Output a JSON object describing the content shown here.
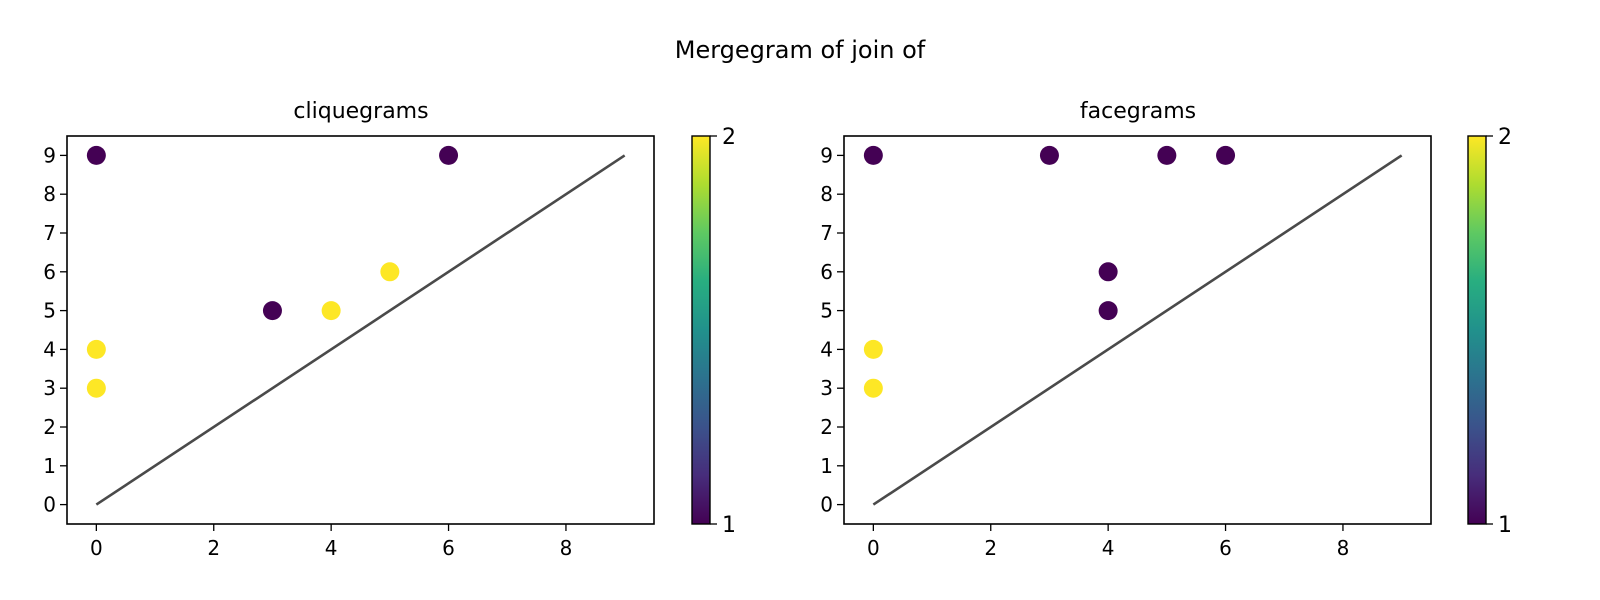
{
  "suptitle": "Mergegram of join of",
  "colors": {
    "low": "#440154",
    "high": "#fde725",
    "diagonal": "#4a4a4a"
  },
  "chart_data": [
    {
      "type": "scatter",
      "title": "cliquegrams",
      "xlabel": "",
      "ylabel": "",
      "xlim": [
        -0.5,
        9.5
      ],
      "ylim": [
        -0.5,
        9.5
      ],
      "xticks": [
        0,
        2,
        4,
        6,
        8
      ],
      "yticks": [
        0,
        1,
        2,
        3,
        4,
        5,
        6,
        7,
        8,
        9
      ],
      "diagonal": [
        [
          0,
          0
        ],
        [
          9,
          9
        ]
      ],
      "points": [
        {
          "x": 0,
          "y": 9,
          "c": 1
        },
        {
          "x": 6,
          "y": 9,
          "c": 1
        },
        {
          "x": 5,
          "y": 6,
          "c": 2
        },
        {
          "x": 3,
          "y": 5,
          "c": 1
        },
        {
          "x": 4,
          "y": 5,
          "c": 2
        },
        {
          "x": 0,
          "y": 4,
          "c": 2
        },
        {
          "x": 0,
          "y": 3,
          "c": 2
        }
      ],
      "colorbar": {
        "min": 1,
        "max": 2,
        "ticks": [
          "1",
          "2"
        ]
      },
      "grid": false
    },
    {
      "type": "scatter",
      "title": "facegrams",
      "xlabel": "",
      "ylabel": "",
      "xlim": [
        -0.5,
        9.5
      ],
      "ylim": [
        -0.5,
        9.5
      ],
      "xticks": [
        0,
        2,
        4,
        6,
        8
      ],
      "yticks": [
        0,
        1,
        2,
        3,
        4,
        5,
        6,
        7,
        8,
        9
      ],
      "diagonal": [
        [
          0,
          0
        ],
        [
          9,
          9
        ]
      ],
      "points": [
        {
          "x": 0,
          "y": 9,
          "c": 1
        },
        {
          "x": 3,
          "y": 9,
          "c": 1
        },
        {
          "x": 5,
          "y": 9,
          "c": 1
        },
        {
          "x": 6,
          "y": 9,
          "c": 1
        },
        {
          "x": 4,
          "y": 6,
          "c": 1
        },
        {
          "x": 4,
          "y": 5,
          "c": 1
        },
        {
          "x": 0,
          "y": 4,
          "c": 2
        },
        {
          "x": 0,
          "y": 3,
          "c": 2
        }
      ],
      "colorbar": {
        "min": 1,
        "max": 2,
        "ticks": [
          "1",
          "2"
        ]
      },
      "grid": false
    }
  ]
}
